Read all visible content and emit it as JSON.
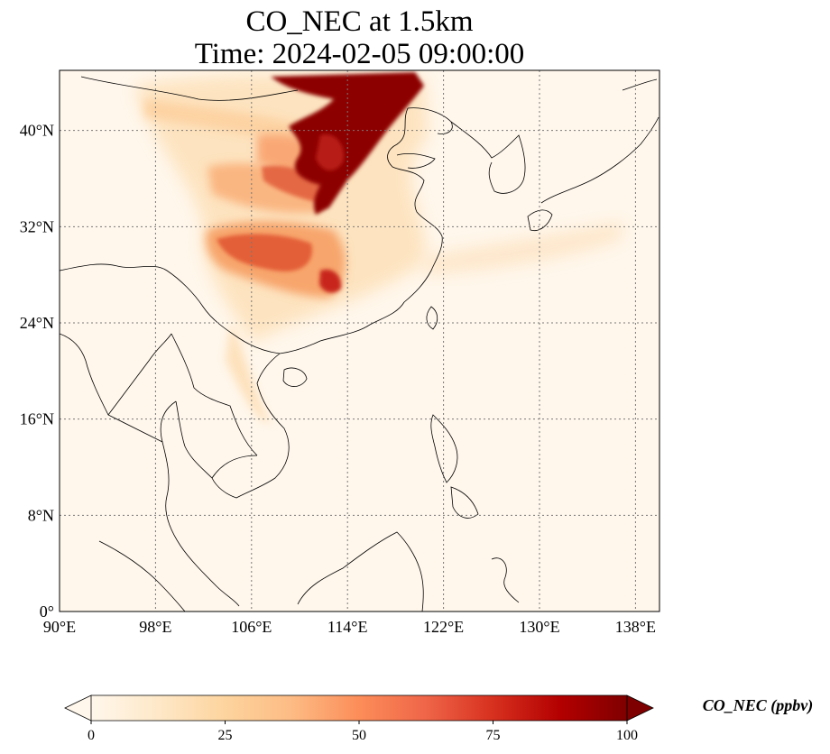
{
  "title": {
    "line1": "CO_NEC at 1.5km",
    "line2": "Time: 2024-02-05 09:00:00"
  },
  "map": {
    "lon_range": [
      90,
      140
    ],
    "lat_range": [
      0,
      45
    ],
    "lon_ticks": [
      {
        "value": 90,
        "label": "90°E"
      },
      {
        "value": 98,
        "label": "98°E"
      },
      {
        "value": 106,
        "label": "106°E"
      },
      {
        "value": 114,
        "label": "114°E"
      },
      {
        "value": 122,
        "label": "122°E"
      },
      {
        "value": 130,
        "label": "130°E"
      },
      {
        "value": 138,
        "label": "138°E"
      }
    ],
    "lat_ticks": [
      {
        "value": 0,
        "label": "0°"
      },
      {
        "value": 8,
        "label": "8°N"
      },
      {
        "value": 16,
        "label": "16°N"
      },
      {
        "value": 24,
        "label": "24°N"
      },
      {
        "value": 32,
        "label": "32°N"
      },
      {
        "value": 40,
        "label": "40°N"
      }
    ],
    "gridlines": "dotted",
    "colormap": "OrRd",
    "colors": [
      "#fff7ec",
      "#fee8c8",
      "#fdd49e",
      "#fdbb84",
      "#fc8d59",
      "#ef6548",
      "#d7301f",
      "#b30000",
      "#7f0000"
    ]
  },
  "colorbar": {
    "label": "CO_NEC (ppbv)",
    "min": 0,
    "max": 100,
    "extend": "both",
    "ticks": [
      {
        "value": 0,
        "label": "0"
      },
      {
        "value": 25,
        "label": "25"
      },
      {
        "value": 50,
        "label": "50"
      },
      {
        "value": 75,
        "label": "75"
      },
      {
        "value": 100,
        "label": "100"
      }
    ]
  }
}
